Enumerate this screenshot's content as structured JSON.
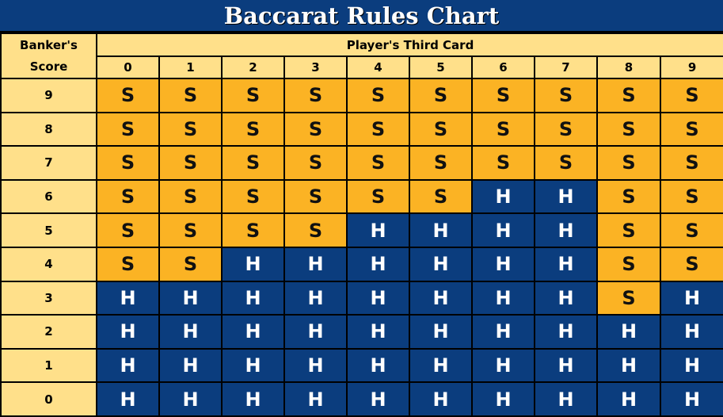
{
  "title": "Baccarat Rules Chart",
  "corner_label": "Banker's Score",
  "header": "Player's Third Card",
  "columns": [
    "0",
    "1",
    "2",
    "3",
    "4",
    "5",
    "6",
    "7",
    "8",
    "9"
  ],
  "colors": {
    "stand": "#fbb324",
    "hit": "#0b3d7e",
    "header": "#ffe08a"
  },
  "rows": [
    {
      "score": "9",
      "cells": [
        "S",
        "S",
        "S",
        "S",
        "S",
        "S",
        "S",
        "S",
        "S",
        "S"
      ]
    },
    {
      "score": "8",
      "cells": [
        "S",
        "S",
        "S",
        "S",
        "S",
        "S",
        "S",
        "S",
        "S",
        "S"
      ]
    },
    {
      "score": "7",
      "cells": [
        "S",
        "S",
        "S",
        "S",
        "S",
        "S",
        "S",
        "S",
        "S",
        "S"
      ]
    },
    {
      "score": "6",
      "cells": [
        "S",
        "S",
        "S",
        "S",
        "S",
        "S",
        "H",
        "H",
        "S",
        "S"
      ]
    },
    {
      "score": "5",
      "cells": [
        "S",
        "S",
        "S",
        "S",
        "H",
        "H",
        "H",
        "H",
        "S",
        "S"
      ]
    },
    {
      "score": "4",
      "cells": [
        "S",
        "S",
        "H",
        "H",
        "H",
        "H",
        "H",
        "H",
        "S",
        "S"
      ]
    },
    {
      "score": "3",
      "cells": [
        "H",
        "H",
        "H",
        "H",
        "H",
        "H",
        "H",
        "H",
        "S",
        "H"
      ]
    },
    {
      "score": "2",
      "cells": [
        "H",
        "H",
        "H",
        "H",
        "H",
        "H",
        "H",
        "H",
        "H",
        "H"
      ]
    },
    {
      "score": "1",
      "cells": [
        "H",
        "H",
        "H",
        "H",
        "H",
        "H",
        "H",
        "H",
        "H",
        "H"
      ]
    },
    {
      "score": "0",
      "cells": [
        "H",
        "H",
        "H",
        "H",
        "H",
        "H",
        "H",
        "H",
        "H",
        "H"
      ]
    }
  ]
}
